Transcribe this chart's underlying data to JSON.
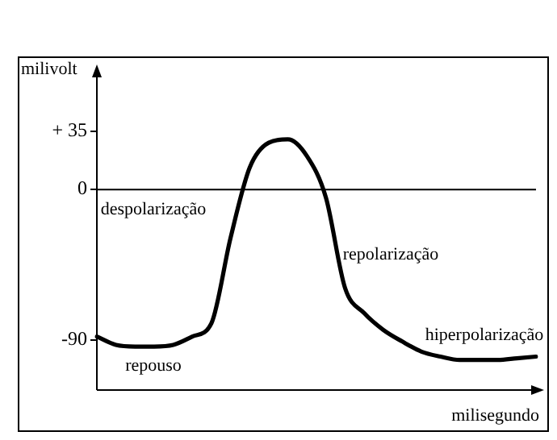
{
  "chart_data": {
    "type": "line",
    "ylabel": "milivolt",
    "xlabel": "milisegundo",
    "categories": [
      null,
      null,
      null,
      null,
      null,
      null,
      null,
      null,
      null,
      null,
      null,
      null,
      null,
      null,
      null,
      null,
      null,
      null,
      null,
      null,
      null,
      null,
      null,
      null
    ],
    "series": [
      {
        "color": "#000000",
        "values": [
          -88,
          -93,
          -94,
          -94,
          -93,
          -88,
          -80,
          -29,
          13,
          28,
          30,
          20,
          -5,
          -59,
          -74,
          -84,
          -91,
          -97,
          -100,
          -102,
          -102,
          -102,
          -101,
          -100
        ]
      }
    ],
    "ylim": [
      -120,
      70
    ],
    "yticks": [
      {
        "value": 35,
        "label": "+ 35"
      },
      0,
      -90
    ],
    "ref_lines": [
      {
        "axis": "y",
        "value": 0,
        "color": "#000000"
      }
    ],
    "annotations": [
      "despolarização",
      "repolarização",
      "hiperpolarização",
      "repouso"
    ],
    "tick_labels": "y",
    "grid": false,
    "legend": false,
    "marker": "none",
    "line_style": "solid"
  }
}
